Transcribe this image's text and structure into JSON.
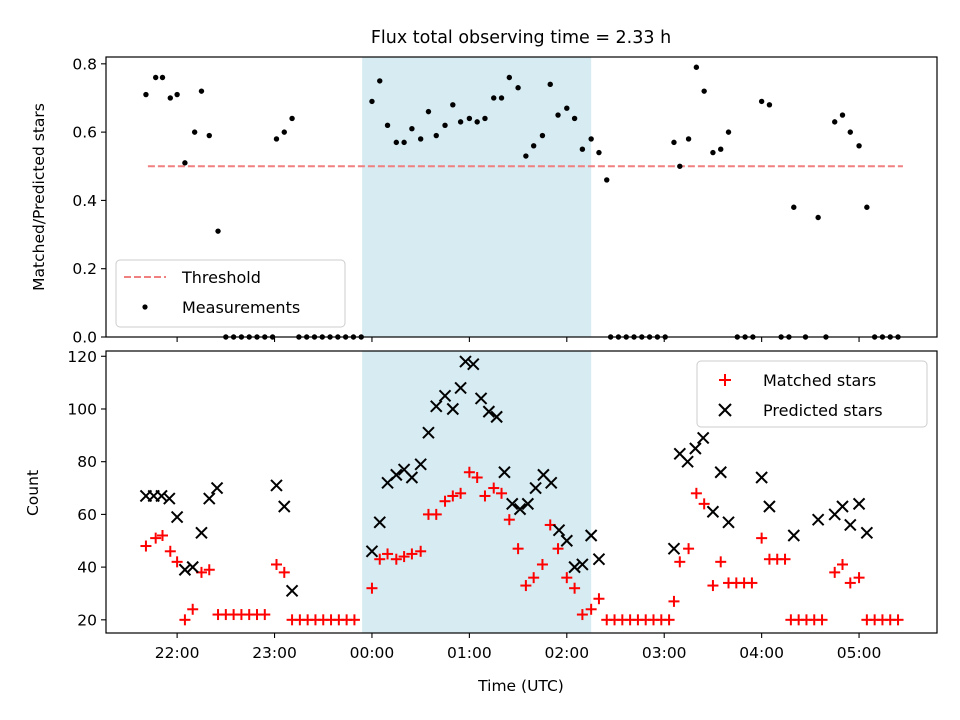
{
  "chart_data": [
    {
      "type": "scatter",
      "title": "Flux total observing time = 2.33 h",
      "xlabel": "",
      "ylabel": "Matched/Predicted stars",
      "ylim": [
        0,
        0.82
      ],
      "yticks": [
        "0.0",
        "0.2",
        "0.4",
        "0.6",
        "0.8"
      ],
      "shaded_interval_hours": [
        23.9,
        26.25
      ],
      "threshold": {
        "name": "Threshold",
        "value": 0.5,
        "x_range_hours": [
          21.7,
          29.45
        ],
        "color": "#f07f7f"
      },
      "legend": {
        "placement": "lower-left",
        "entries": [
          "Threshold",
          "Measurements"
        ]
      },
      "series": [
        {
          "name": "Measurements",
          "color": "#000000",
          "points": [
            [
              21.68,
              0.71
            ],
            [
              21.78,
              0.76
            ],
            [
              21.85,
              0.76
            ],
            [
              21.93,
              0.7
            ],
            [
              22.0,
              0.71
            ],
            [
              22.08,
              0.51
            ],
            [
              22.18,
              0.6
            ],
            [
              22.25,
              0.72
            ],
            [
              22.33,
              0.59
            ],
            [
              22.42,
              0.31
            ],
            [
              22.5,
              0
            ],
            [
              22.58,
              0
            ],
            [
              22.66,
              0
            ],
            [
              22.74,
              0
            ],
            [
              22.82,
              0
            ],
            [
              22.9,
              0
            ],
            [
              22.98,
              0
            ],
            [
              23.02,
              0.58
            ],
            [
              23.1,
              0.6
            ],
            [
              23.18,
              0.64
            ],
            [
              23.25,
              0
            ],
            [
              23.33,
              0
            ],
            [
              23.41,
              0
            ],
            [
              23.49,
              0
            ],
            [
              23.57,
              0
            ],
            [
              23.65,
              0
            ],
            [
              23.73,
              0
            ],
            [
              23.81,
              0
            ],
            [
              23.89,
              0
            ],
            [
              24.0,
              0.69
            ],
            [
              24.08,
              0.75
            ],
            [
              24.16,
              0.62
            ],
            [
              24.25,
              0.57
            ],
            [
              24.33,
              0.57
            ],
            [
              24.41,
              0.61
            ],
            [
              24.5,
              0.58
            ],
            [
              24.58,
              0.66
            ],
            [
              24.66,
              0.59
            ],
            [
              24.75,
              0.62
            ],
            [
              24.83,
              0.68
            ],
            [
              24.91,
              0.63
            ],
            [
              25.0,
              0.64
            ],
            [
              25.08,
              0.63
            ],
            [
              25.16,
              0.64
            ],
            [
              25.25,
              0.7
            ],
            [
              25.33,
              0.7
            ],
            [
              25.41,
              0.76
            ],
            [
              25.5,
              0.73
            ],
            [
              25.58,
              0.53
            ],
            [
              25.66,
              0.56
            ],
            [
              25.75,
              0.59
            ],
            [
              25.83,
              0.74
            ],
            [
              25.91,
              0.65
            ],
            [
              26.0,
              0.67
            ],
            [
              26.08,
              0.64
            ],
            [
              26.16,
              0.55
            ],
            [
              26.25,
              0.58
            ],
            [
              26.33,
              0.54
            ],
            [
              26.41,
              0.46
            ],
            [
              26.45,
              0
            ],
            [
              26.53,
              0
            ],
            [
              26.61,
              0
            ],
            [
              26.69,
              0
            ],
            [
              26.77,
              0
            ],
            [
              26.85,
              0
            ],
            [
              26.93,
              0
            ],
            [
              27.01,
              0
            ],
            [
              27.1,
              0.57
            ],
            [
              27.16,
              0.5
            ],
            [
              27.25,
              0.58
            ],
            [
              27.33,
              0.79
            ],
            [
              27.41,
              0.72
            ],
            [
              27.5,
              0.54
            ],
            [
              27.58,
              0.55
            ],
            [
              27.66,
              0.6
            ],
            [
              27.75,
              0
            ],
            [
              27.83,
              0
            ],
            [
              27.91,
              0
            ],
            [
              28.0,
              0.69
            ],
            [
              28.08,
              0.68
            ],
            [
              28.2,
              0
            ],
            [
              28.28,
              0
            ],
            [
              28.33,
              0.38
            ],
            [
              28.45,
              0
            ],
            [
              28.58,
              0.35
            ],
            [
              28.66,
              0
            ],
            [
              28.75,
              0.63
            ],
            [
              28.83,
              0.65
            ],
            [
              28.91,
              0.6
            ],
            [
              29.0,
              0.56
            ],
            [
              29.08,
              0.38
            ],
            [
              29.16,
              0
            ],
            [
              29.24,
              0
            ],
            [
              29.32,
              0
            ],
            [
              29.4,
              0
            ]
          ]
        }
      ]
    },
    {
      "type": "scatter",
      "title": "",
      "xlabel": "Time (UTC)",
      "ylabel": "Count",
      "ylim": [
        15,
        122
      ],
      "yticks": [
        "20",
        "40",
        "60",
        "80",
        "100",
        "120"
      ],
      "xlim_hours": [
        21.27,
        29.8
      ],
      "xticks": [
        {
          "hour": 22,
          "label": "22:00"
        },
        {
          "hour": 23,
          "label": "23:00"
        },
        {
          "hour": 24,
          "label": "00:00"
        },
        {
          "hour": 25,
          "label": "01:00"
        },
        {
          "hour": 26,
          "label": "02:00"
        },
        {
          "hour": 27,
          "label": "03:00"
        },
        {
          "hour": 28,
          "label": "04:00"
        },
        {
          "hour": 29,
          "label": "05:00"
        }
      ],
      "shaded_interval_hours": [
        23.9,
        26.25
      ],
      "legend": {
        "placement": "top-right",
        "entries": [
          "Matched stars",
          "Predicted stars"
        ]
      },
      "series": [
        {
          "name": "Matched stars",
          "marker": "plus",
          "color": "#ff0000",
          "points": [
            [
              21.68,
              48
            ],
            [
              21.78,
              51
            ],
            [
              21.85,
              52
            ],
            [
              21.93,
              46
            ],
            [
              22.0,
              42
            ],
            [
              22.08,
              20
            ],
            [
              22.16,
              24
            ],
            [
              22.25,
              38
            ],
            [
              22.33,
              39
            ],
            [
              22.42,
              22
            ],
            [
              22.5,
              22
            ],
            [
              22.58,
              22
            ],
            [
              22.66,
              22
            ],
            [
              22.74,
              22
            ],
            [
              22.82,
              22
            ],
            [
              22.9,
              22
            ],
            [
              23.02,
              41
            ],
            [
              23.1,
              38
            ],
            [
              23.18,
              20
            ],
            [
              23.26,
              20
            ],
            [
              23.34,
              20
            ],
            [
              23.42,
              20
            ],
            [
              23.5,
              20
            ],
            [
              23.58,
              20
            ],
            [
              23.66,
              20
            ],
            [
              23.74,
              20
            ],
            [
              23.82,
              20
            ],
            [
              24.0,
              32
            ],
            [
              24.08,
              43
            ],
            [
              24.16,
              45
            ],
            [
              24.25,
              43
            ],
            [
              24.33,
              44
            ],
            [
              24.41,
              45
            ],
            [
              24.5,
              46
            ],
            [
              24.58,
              60
            ],
            [
              24.66,
              60
            ],
            [
              24.75,
              65
            ],
            [
              24.83,
              67
            ],
            [
              24.91,
              68
            ],
            [
              25.0,
              76
            ],
            [
              25.08,
              74
            ],
            [
              25.16,
              67
            ],
            [
              25.25,
              70
            ],
            [
              25.33,
              68
            ],
            [
              25.41,
              58
            ],
            [
              25.5,
              47
            ],
            [
              25.58,
              33
            ],
            [
              25.66,
              36
            ],
            [
              25.75,
              41
            ],
            [
              25.83,
              56
            ],
            [
              25.91,
              47
            ],
            [
              26.0,
              36
            ],
            [
              26.08,
              32
            ],
            [
              26.16,
              22
            ],
            [
              26.25,
              24
            ],
            [
              26.33,
              28
            ],
            [
              26.41,
              20
            ],
            [
              26.49,
              20
            ],
            [
              26.57,
              20
            ],
            [
              26.65,
              20
            ],
            [
              26.73,
              20
            ],
            [
              26.81,
              20
            ],
            [
              26.89,
              20
            ],
            [
              26.97,
              20
            ],
            [
              27.05,
              20
            ],
            [
              27.1,
              27
            ],
            [
              27.16,
              42
            ],
            [
              27.25,
              47
            ],
            [
              27.33,
              68
            ],
            [
              27.41,
              64
            ],
            [
              27.5,
              33
            ],
            [
              27.58,
              42
            ],
            [
              27.66,
              34
            ],
            [
              27.74,
              34
            ],
            [
              27.82,
              34
            ],
            [
              27.9,
              34
            ],
            [
              28.0,
              51
            ],
            [
              28.08,
              43
            ],
            [
              28.16,
              43
            ],
            [
              28.24,
              43
            ],
            [
              28.3,
              20
            ],
            [
              28.38,
              20
            ],
            [
              28.46,
              20
            ],
            [
              28.54,
              20
            ],
            [
              28.62,
              20
            ],
            [
              28.75,
              38
            ],
            [
              28.83,
              41
            ],
            [
              28.91,
              34
            ],
            [
              29.0,
              36
            ],
            [
              29.08,
              20
            ],
            [
              29.16,
              20
            ],
            [
              29.24,
              20
            ],
            [
              29.32,
              20
            ],
            [
              29.4,
              20
            ]
          ]
        },
        {
          "name": "Predicted stars",
          "marker": "x",
          "color": "#000000",
          "points": [
            [
              21.68,
              67
            ],
            [
              21.76,
              67
            ],
            [
              21.84,
              67
            ],
            [
              21.92,
              66
            ],
            [
              22.0,
              59
            ],
            [
              22.08,
              39
            ],
            [
              22.16,
              40
            ],
            [
              22.25,
              53
            ],
            [
              22.33,
              66
            ],
            [
              22.41,
              70
            ],
            [
              23.02,
              71
            ],
            [
              23.1,
              63
            ],
            [
              23.18,
              31
            ],
            [
              24.0,
              46
            ],
            [
              24.08,
              57
            ],
            [
              24.16,
              72
            ],
            [
              24.25,
              75
            ],
            [
              24.33,
              77
            ],
            [
              24.41,
              74
            ],
            [
              24.5,
              79
            ],
            [
              24.58,
              91
            ],
            [
              24.66,
              101
            ],
            [
              24.75,
              105
            ],
            [
              24.83,
              100
            ],
            [
              24.91,
              108
            ],
            [
              24.96,
              118
            ],
            [
              25.04,
              117
            ],
            [
              25.12,
              104
            ],
            [
              25.2,
              99
            ],
            [
              25.28,
              97
            ],
            [
              25.36,
              76
            ],
            [
              25.44,
              64
            ],
            [
              25.52,
              62
            ],
            [
              25.6,
              64
            ],
            [
              25.68,
              70
            ],
            [
              25.76,
              75
            ],
            [
              25.84,
              72
            ],
            [
              25.92,
              54
            ],
            [
              26.0,
              50
            ],
            [
              26.08,
              40
            ],
            [
              26.16,
              41
            ],
            [
              26.25,
              52
            ],
            [
              26.33,
              43
            ],
            [
              27.1,
              47
            ],
            [
              27.16,
              83
            ],
            [
              27.24,
              80
            ],
            [
              27.32,
              85
            ],
            [
              27.4,
              89
            ],
            [
              27.5,
              61
            ],
            [
              27.58,
              76
            ],
            [
              27.66,
              57
            ],
            [
              28.0,
              74
            ],
            [
              28.08,
              63
            ],
            [
              28.33,
              52
            ],
            [
              28.58,
              58
            ],
            [
              28.75,
              60
            ],
            [
              28.83,
              63
            ],
            [
              28.91,
              56
            ],
            [
              29.0,
              64
            ],
            [
              29.08,
              53
            ]
          ]
        }
      ]
    }
  ]
}
